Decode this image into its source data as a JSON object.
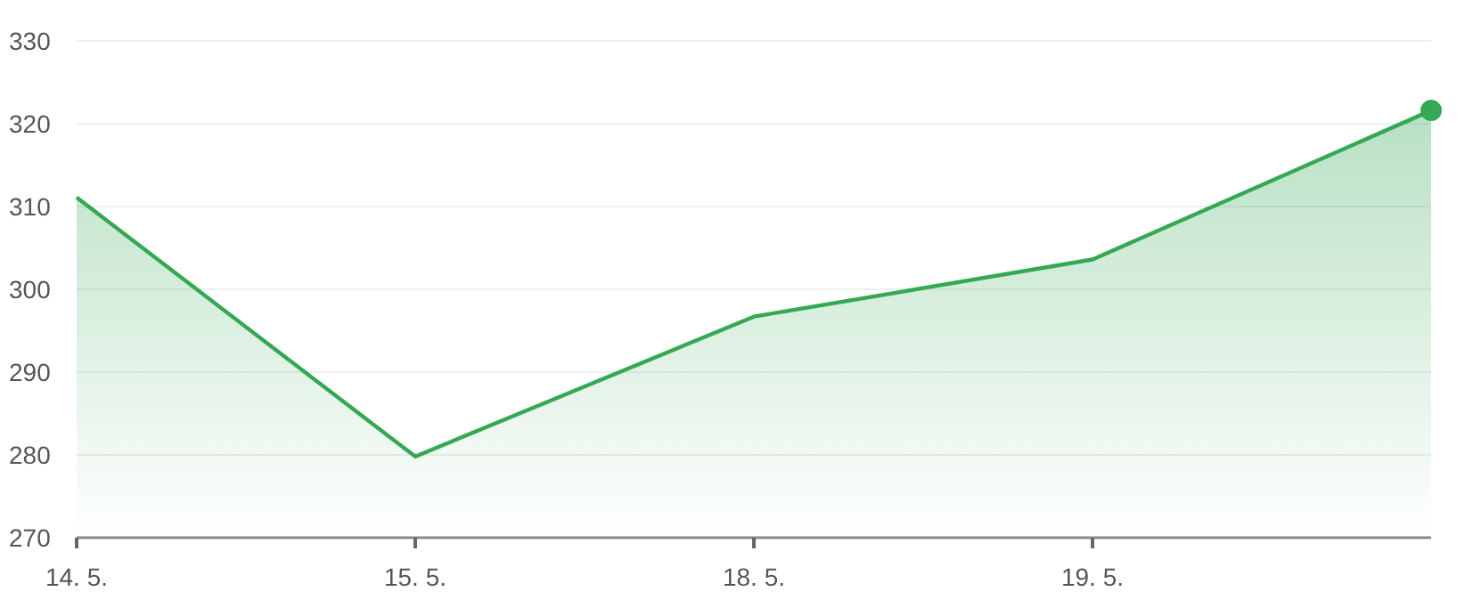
{
  "chart_data": {
    "type": "area",
    "categories": [
      "14. 5.",
      "15. 5.",
      "18. 5.",
      "19. 5.",
      null
    ],
    "series": [
      {
        "color": "#34a853",
        "values": [
          311.1,
          279.8,
          296.7,
          303.6,
          321.6
        ]
      },
      {
        "type": "scatter",
        "color": "#34a853",
        "values": [
          null,
          null,
          null,
          null,
          321.6
        ]
      }
    ],
    "ylim": [
      270,
      330
    ],
    "yticks": [
      270,
      280,
      290,
      300,
      310,
      320,
      330
    ],
    "grid": "y"
  }
}
